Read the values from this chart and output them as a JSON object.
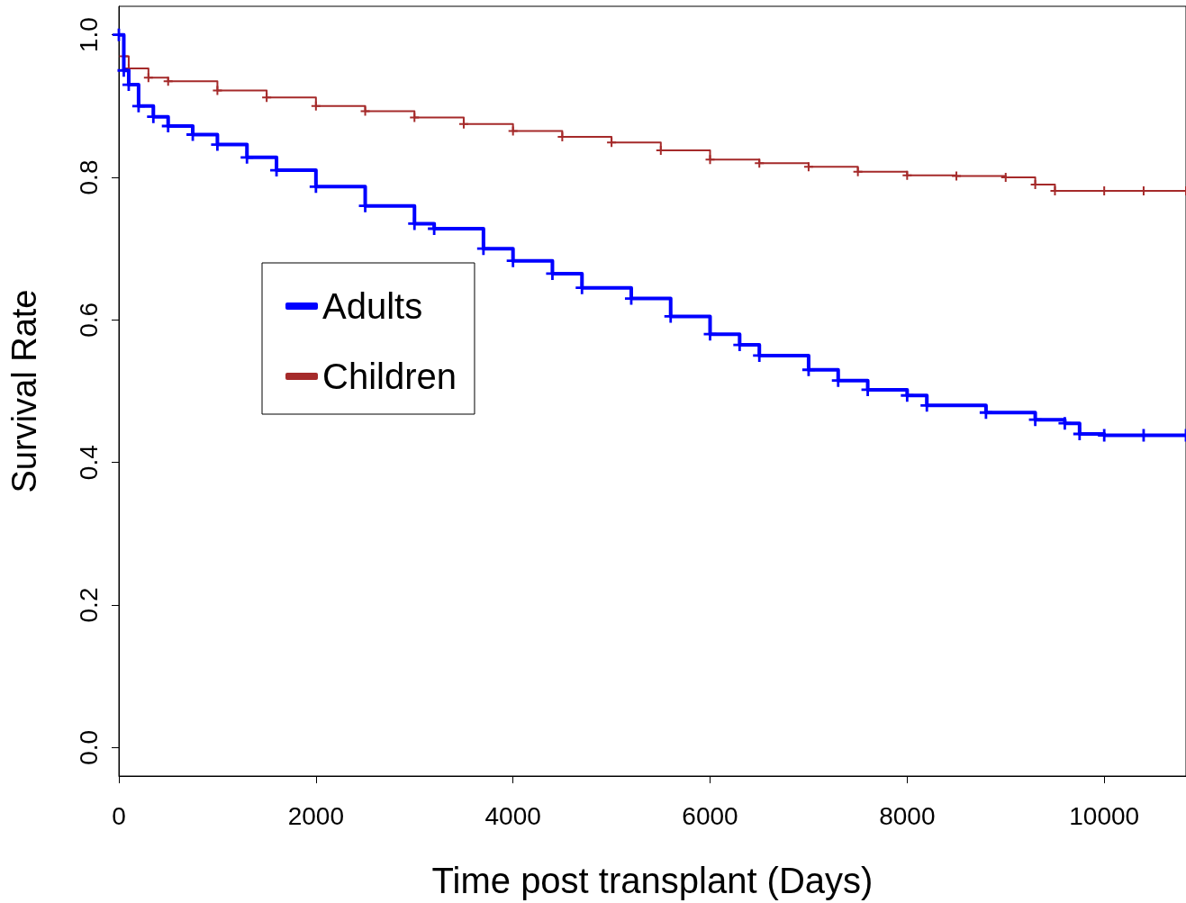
{
  "chart_data": {
    "type": "step",
    "xlabel": "Time post transplant (Days)",
    "ylabel": "Survival Rate",
    "xlim": [
      0,
      10830
    ],
    "xticks": [
      0,
      2000,
      4000,
      6000,
      8000,
      10000
    ],
    "ylim": [
      -0.04,
      1.04
    ],
    "yticks": [
      {
        "value": 0,
        "label": "0.0"
      },
      0.2,
      0.4,
      0.6,
      0.8,
      {
        "value": 1,
        "label": "1.0"
      }
    ],
    "grid": false,
    "legend": "left",
    "marker": "cross",
    "line_style": "solid",
    "series": [
      {
        "name": "Adults",
        "color": "#0000ff",
        "x": [
          0,
          50,
          100,
          200,
          350,
          500,
          750,
          1000,
          1300,
          1600,
          2000,
          2500,
          3000,
          3200,
          3700,
          4000,
          4400,
          4700,
          5200,
          5600,
          6000,
          6300,
          6500,
          7000,
          7300,
          7600,
          8000,
          8200,
          8800,
          9300,
          9600,
          9750,
          10000,
          10400,
          10830
        ],
        "values": [
          1.0,
          0.95,
          0.93,
          0.9,
          0.885,
          0.872,
          0.86,
          0.846,
          0.828,
          0.81,
          0.787,
          0.76,
          0.735,
          0.728,
          0.7,
          0.683,
          0.665,
          0.645,
          0.63,
          0.605,
          0.58,
          0.565,
          0.55,
          0.53,
          0.515,
          0.502,
          0.494,
          0.48,
          0.47,
          0.46,
          0.455,
          0.44,
          0.438,
          0.438,
          0.438
        ]
      },
      {
        "name": "Children",
        "color": "#a52a2a",
        "x": [
          0,
          50,
          100,
          300,
          500,
          1000,
          1500,
          2000,
          2500,
          3000,
          3500,
          4000,
          4500,
          5000,
          5500,
          6000,
          6500,
          7000,
          7500,
          8000,
          8500,
          9000,
          9300,
          9500,
          10000,
          10400,
          10830
        ],
        "values": [
          1.0,
          0.97,
          0.953,
          0.94,
          0.935,
          0.922,
          0.912,
          0.9,
          0.893,
          0.884,
          0.875,
          0.865,
          0.857,
          0.849,
          0.838,
          0.825,
          0.82,
          0.815,
          0.808,
          0.803,
          0.802,
          0.8,
          0.79,
          0.781,
          0.781,
          0.781,
          0.781
        ]
      }
    ]
  }
}
